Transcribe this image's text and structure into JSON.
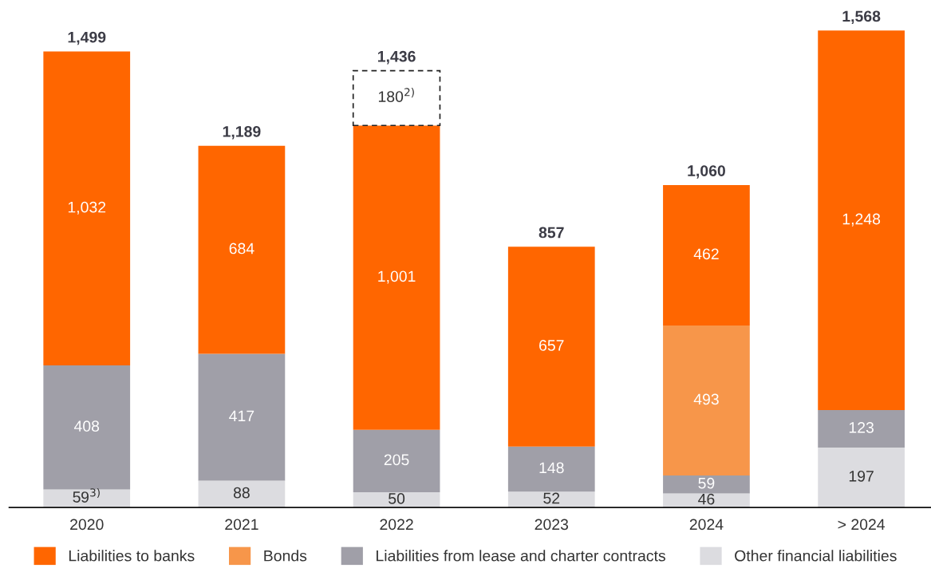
{
  "chart_data": {
    "type": "bar",
    "stacked": true,
    "categories": [
      "2020",
      "2021",
      "2022",
      "2023",
      "2024",
      "> 2024"
    ],
    "series": [
      {
        "name": "Other financial liabilities",
        "color": "#dcdce0",
        "values": [
          59,
          88,
          50,
          52,
          46,
          197
        ],
        "value_labels": [
          "59$^{3)}$",
          "88",
          "50",
          "52",
          "46",
          "197"
        ]
      },
      {
        "name": "Liabilities from lease and charter contracts",
        "color": "#a09fa8",
        "values": [
          408,
          417,
          205,
          148,
          59,
          123
        ]
      },
      {
        "name": "Bonds",
        "color": "#f7964a",
        "values": [
          null,
          null,
          null,
          null,
          493,
          null
        ]
      },
      {
        "name": "Liabilities to banks",
        "color": "#ff6600",
        "values": [
          1032,
          684,
          1001,
          657,
          462,
          1248
        ],
        "value_labels": [
          "1,032",
          "684",
          "1,001",
          "657",
          "462",
          "1,248"
        ]
      },
      {
        "color": "#ffffff",
        "line_style": "dashed",
        "values": [
          null,
          null,
          180,
          null,
          null,
          null
        ],
        "value_labels": [
          null,
          null,
          "180$^{2)}$",
          null,
          null,
          null
        ]
      }
    ],
    "data_labels": true,
    "totals": [
      "1,499",
      "1,189",
      "1,436",
      "857",
      "1,060",
      "1,568"
    ],
    "legend": "bottom",
    "tick_labels": "x"
  }
}
